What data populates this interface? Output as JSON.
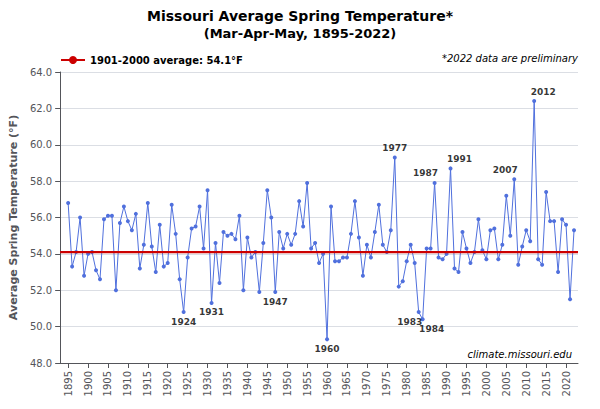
{
  "chart_data": {
    "type": "line",
    "title": "Missouri Average Spring Temperature*",
    "subtitle": "(Mar-Apr-May, 1895-2022)",
    "ylabel": "Average Spring Temperature (°F)",
    "x": [
      1895,
      1896,
      1897,
      1898,
      1899,
      1900,
      1901,
      1902,
      1903,
      1904,
      1905,
      1906,
      1907,
      1908,
      1909,
      1910,
      1911,
      1912,
      1913,
      1914,
      1915,
      1916,
      1917,
      1918,
      1919,
      1920,
      1921,
      1922,
      1923,
      1924,
      1925,
      1926,
      1927,
      1928,
      1929,
      1930,
      1931,
      1932,
      1933,
      1934,
      1935,
      1936,
      1937,
      1938,
      1939,
      1940,
      1941,
      1942,
      1943,
      1944,
      1945,
      1946,
      1947,
      1948,
      1949,
      1950,
      1951,
      1952,
      1953,
      1954,
      1955,
      1956,
      1957,
      1958,
      1959,
      1960,
      1961,
      1962,
      1963,
      1964,
      1965,
      1966,
      1967,
      1968,
      1969,
      1970,
      1971,
      1972,
      1973,
      1974,
      1975,
      1976,
      1977,
      1978,
      1979,
      1980,
      1981,
      1982,
      1983,
      1984,
      1985,
      1986,
      1987,
      1988,
      1989,
      1990,
      1991,
      1992,
      1993,
      1994,
      1995,
      1996,
      1997,
      1998,
      1999,
      2000,
      2001,
      2002,
      2003,
      2004,
      2005,
      2006,
      2007,
      2008,
      2009,
      2010,
      2011,
      2012,
      2013,
      2014,
      2015,
      2016,
      2017,
      2018,
      2019,
      2020,
      2021,
      2022
    ],
    "series": [
      {
        "marker": "circle",
        "values": [
          56.8,
          53.3,
          54.1,
          56.0,
          52.8,
          54.0,
          54.1,
          53.1,
          52.6,
          55.9,
          56.1,
          56.1,
          52.0,
          55.7,
          56.6,
          55.8,
          55.3,
          56.2,
          53.2,
          54.5,
          56.8,
          54.4,
          53.0,
          55.6,
          53.3,
          53.5,
          56.7,
          55.1,
          52.6,
          50.8,
          53.8,
          55.4,
          55.5,
          56.6,
          54.3,
          57.5,
          51.3,
          54.6,
          52.4,
          55.2,
          55.0,
          55.1,
          54.8,
          56.1,
          52.0,
          54.9,
          53.8,
          54.1,
          51.9,
          54.6,
          57.5,
          56.0,
          51.9,
          55.2,
          54.3,
          55.1,
          54.5,
          55.1,
          56.9,
          55.5,
          57.9,
          54.3,
          54.6,
          53.5,
          54.0,
          49.3,
          56.6,
          53.6,
          53.6,
          53.8,
          53.8,
          55.1,
          56.9,
          54.9,
          52.8,
          54.5,
          53.8,
          55.2,
          56.7,
          54.5,
          54.1,
          55.3,
          59.3,
          52.2,
          52.5,
          53.6,
          54.5,
          53.5,
          50.8,
          50.4,
          54.3,
          54.3,
          57.9,
          53.8,
          53.7,
          54.0,
          58.7,
          53.2,
          53.0,
          55.2,
          54.3,
          53.5,
          54.1,
          55.9,
          54.2,
          53.7,
          55.3,
          55.4,
          53.7,
          54.5,
          57.2,
          55.0,
          58.1,
          53.4,
          54.4,
          55.3,
          54.7,
          62.4,
          53.7,
          53.4,
          57.4,
          55.8,
          55.8,
          53.0,
          55.9,
          55.6,
          51.5,
          55.3
        ]
      }
    ],
    "average": {
      "name": "1901-2000 average: 54.1°F",
      "value": 54.1,
      "color": "#cc0000"
    },
    "annotations": [
      {
        "text": "1924",
        "x": 1924,
        "y": 50.8
      },
      {
        "text": "1931",
        "x": 1931,
        "y": 51.3
      },
      {
        "text": "1947",
        "x": 1947,
        "y": 51.9
      },
      {
        "text": "1960",
        "x": 1960,
        "y": 49.3
      },
      {
        "text": "1977",
        "x": 1977,
        "y": 59.3
      },
      {
        "text": "1983",
        "x": 1983,
        "y": 50.8
      },
      {
        "text": "1984",
        "x": 1984,
        "y": 50.4
      },
      {
        "text": "1987",
        "x": 1987,
        "y": 57.9
      },
      {
        "text": "1991",
        "x": 1991,
        "y": 58.7
      },
      {
        "text": "2007",
        "x": 2007,
        "y": 58.1
      },
      {
        "text": "2012",
        "x": 2012,
        "y": 62.4
      }
    ],
    "note": "*2022 data are preliminary",
    "source": "climate.missouri.edu",
    "xlim": [
      1893,
      2023
    ],
    "xticks": [
      1895,
      1900,
      1905,
      1910,
      1915,
      1920,
      1925,
      1930,
      1935,
      1940,
      1945,
      1950,
      1955,
      1960,
      1965,
      1970,
      1975,
      1980,
      1985,
      1990,
      1995,
      2000,
      2005,
      2010,
      2015,
      2020
    ],
    "ylim": [
      48,
      64
    ],
    "yticks": [
      {
        "value": 48,
        "label": "48.0"
      },
      {
        "value": 50,
        "label": "50.0"
      },
      {
        "value": 52,
        "label": "52.0"
      },
      {
        "value": 54,
        "label": "54.0"
      },
      {
        "value": 56,
        "label": "56.0"
      },
      {
        "value": 58,
        "label": "58.0"
      },
      {
        "value": 60,
        "label": "60.0"
      },
      {
        "value": 62,
        "label": "62.0"
      },
      {
        "value": 64,
        "label": "64.0"
      }
    ],
    "grid": true,
    "legend": "upper left"
  }
}
